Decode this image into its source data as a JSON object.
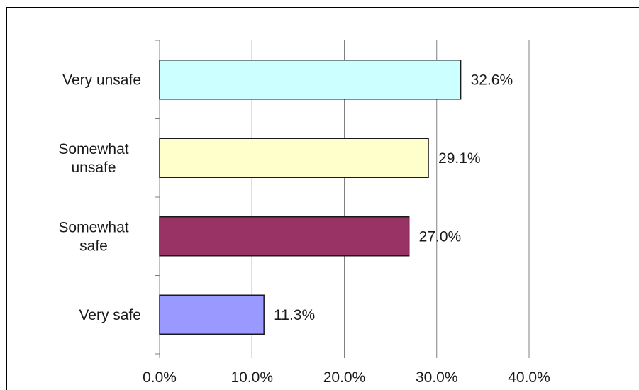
{
  "chart_data": {
    "type": "bar",
    "orientation": "horizontal",
    "categories": [
      [
        "Very unsafe"
      ],
      [
        "Somewhat",
        "unsafe"
      ],
      [
        "Somewhat",
        "safe"
      ],
      [
        "Very safe"
      ]
    ],
    "values": [
      32.6,
      29.1,
      27.0,
      11.3
    ],
    "value_labels": [
      "32.6%",
      "29.1%",
      "27.0%",
      "11.3%"
    ],
    "bar_colors": [
      "#ccffff",
      "#ffffcc",
      "#993366",
      "#9999ff"
    ],
    "xlim": [
      0,
      40
    ],
    "x_ticks": [
      0,
      10,
      20,
      30,
      40
    ],
    "x_tick_labels": [
      "0.0%",
      "10.0%",
      "20.0%",
      "30.0%",
      "40.0%"
    ],
    "grid": "vertical",
    "title": "",
    "xlabel": "",
    "ylabel": ""
  }
}
